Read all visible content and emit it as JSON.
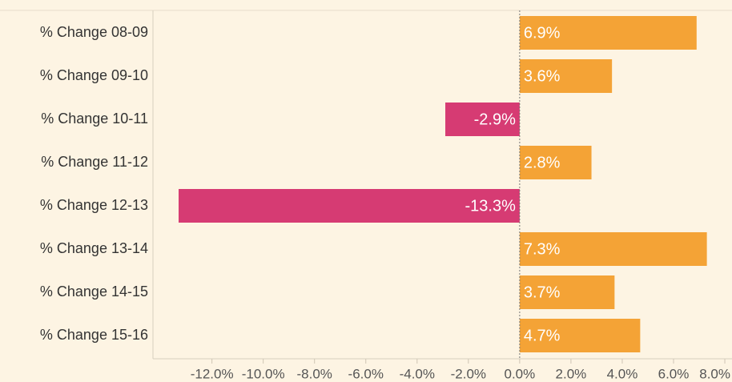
{
  "chart_data": {
    "type": "hbar",
    "categories": [
      "% Change 08-09",
      "% Change 09-10",
      "% Change 10-11",
      "% Change 11-12",
      "% Change 12-13",
      "% Change 13-14",
      "% Change 14-15",
      "% Change 15-16"
    ],
    "values": [
      6.9,
      3.6,
      -2.9,
      2.8,
      -13.3,
      7.3,
      3.7,
      4.7
    ],
    "value_labels": [
      "6.9%",
      "3.6%",
      "-2.9%",
      "2.8%",
      "-13.3%",
      "7.3%",
      "3.7%",
      "4.7%"
    ],
    "colors": [
      "#f4a336",
      "#f4a336",
      "#d63b73",
      "#f4a336",
      "#d63b73",
      "#f4a336",
      "#f4a336",
      "#f4a336"
    ],
    "xlim": [
      -14.3,
      8.28
    ],
    "xticks": [
      {
        "value": -12,
        "label": "-12.0%"
      },
      {
        "value": -10,
        "label": "-10.0%"
      },
      {
        "value": -8,
        "label": "-8.0%"
      },
      {
        "value": -6,
        "label": "-6.0%"
      },
      {
        "value": -4,
        "label": "-4.0%"
      },
      {
        "value": -2,
        "label": "-2.0%"
      },
      {
        "value": 0,
        "label": "0.0%"
      },
      {
        "value": 2,
        "label": "2.0%"
      },
      {
        "value": 4,
        "label": "4.0%"
      },
      {
        "value": 6,
        "label": "6.0%"
      },
      {
        "value": 8,
        "label": "8.0%"
      }
    ]
  }
}
